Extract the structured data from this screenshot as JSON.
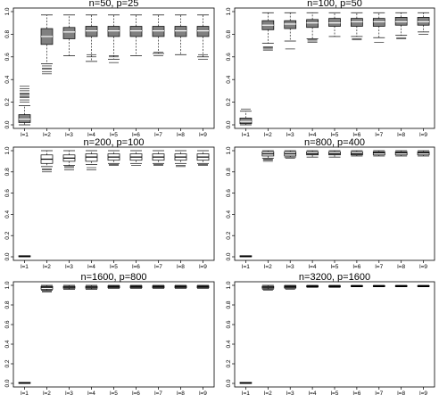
{
  "chart_data": [
    {
      "type": "boxplot",
      "title": "n=50, p=25",
      "categories": [
        "l=1",
        "l=2",
        "l=3",
        "l=4",
        "l=5",
        "l=6",
        "l=7",
        "l=8",
        "l=9"
      ],
      "ylim": [
        0,
        1.0
      ],
      "yticks": [
        "0.0",
        "0.2",
        "0.4",
        "0.6",
        "0.8",
        "1.0"
      ],
      "fill": "#808080",
      "boxes": [
        {
          "low": 0.0,
          "q1": 0.02,
          "median": 0.05,
          "q3": 0.09,
          "high": 0.17,
          "outliers": [
            0.2,
            0.22,
            0.24,
            0.25,
            0.26,
            0.27,
            0.28,
            0.3,
            0.32,
            0.34
          ]
        },
        {
          "low": 0.54,
          "q1": 0.71,
          "median": 0.78,
          "q3": 0.85,
          "high": 0.97,
          "outliers": [
            0.45,
            0.47,
            0.49,
            0.5,
            0.52
          ]
        },
        {
          "low": 0.61,
          "q1": 0.76,
          "median": 0.82,
          "q3": 0.86,
          "high": 0.97,
          "outliers": []
        },
        {
          "low": 0.56,
          "q1": 0.78,
          "median": 0.83,
          "q3": 0.87,
          "high": 0.97,
          "outliers": [
            0.6,
            0.62
          ]
        },
        {
          "low": 0.58,
          "q1": 0.78,
          "median": 0.83,
          "q3": 0.87,
          "high": 0.97,
          "outliers": [
            0.55,
            0.6,
            0.61
          ]
        },
        {
          "low": 0.61,
          "q1": 0.78,
          "median": 0.83,
          "q3": 0.87,
          "high": 0.97,
          "outliers": []
        },
        {
          "low": 0.63,
          "q1": 0.78,
          "median": 0.83,
          "q3": 0.87,
          "high": 0.97,
          "outliers": [
            0.61,
            0.64
          ]
        },
        {
          "low": 0.62,
          "q1": 0.78,
          "median": 0.83,
          "q3": 0.87,
          "high": 0.97,
          "outliers": []
        },
        {
          "low": 0.6,
          "q1": 0.78,
          "median": 0.83,
          "q3": 0.87,
          "high": 0.97,
          "outliers": [
            0.58,
            0.62
          ]
        }
      ]
    },
    {
      "type": "boxplot",
      "title": "n=100, p=50",
      "categories": [
        "l=1",
        "l=2",
        "l=3",
        "l=4",
        "l=5",
        "l=6",
        "l=7",
        "l=8",
        "l=9"
      ],
      "ylim": [
        0,
        1.0
      ],
      "yticks": [
        "0.0",
        "0.2",
        "0.4",
        "0.6",
        "0.8",
        "1.0"
      ],
      "fill": "#808080",
      "boxes": [
        {
          "low": 0.0,
          "q1": 0.01,
          "median": 0.03,
          "q3": 0.06,
          "high": 0.12,
          "outliers": [
            0.14
          ]
        },
        {
          "low": 0.72,
          "q1": 0.84,
          "median": 0.88,
          "q3": 0.92,
          "high": 0.99,
          "outliers": [
            0.66,
            0.67,
            0.68,
            0.69
          ]
        },
        {
          "low": 0.74,
          "q1": 0.85,
          "median": 0.89,
          "q3": 0.92,
          "high": 0.99,
          "outliers": [
            0.67
          ]
        },
        {
          "low": 0.76,
          "q1": 0.86,
          "median": 0.9,
          "q3": 0.93,
          "high": 0.99,
          "outliers": [
            0.73,
            0.74,
            0.75
          ]
        },
        {
          "low": 0.78,
          "q1": 0.87,
          "median": 0.9,
          "q3": 0.94,
          "high": 0.99,
          "outliers": []
        },
        {
          "low": 0.78,
          "q1": 0.87,
          "median": 0.91,
          "q3": 0.94,
          "high": 0.99,
          "outliers": [
            0.75,
            0.76
          ]
        },
        {
          "low": 0.77,
          "q1": 0.87,
          "median": 0.91,
          "q3": 0.94,
          "high": 0.99,
          "outliers": [
            0.73
          ]
        },
        {
          "low": 0.79,
          "q1": 0.88,
          "median": 0.91,
          "q3": 0.95,
          "high": 0.99,
          "outliers": [
            0.76,
            0.77
          ]
        },
        {
          "low": 0.82,
          "q1": 0.88,
          "median": 0.91,
          "q3": 0.95,
          "high": 0.99,
          "outliers": [
            0.8
          ]
        }
      ]
    },
    {
      "type": "boxplot",
      "title": "n=200, p=100",
      "categories": [
        "l=1",
        "l=2",
        "l=3",
        "l=4",
        "l=5",
        "l=6",
        "l=7",
        "l=8",
        "l=9"
      ],
      "ylim": [
        0,
        1.0
      ],
      "yticks": [
        "0.0",
        "0.2",
        "0.4",
        "0.6",
        "0.8",
        "1.0"
      ],
      "fill": "#ffffff",
      "boxes": [
        {
          "low": 0.0,
          "q1": 0.0,
          "median": 0.005,
          "q3": 0.01,
          "high": 0.01,
          "outliers": []
        },
        {
          "low": 0.85,
          "q1": 0.88,
          "median": 0.92,
          "q3": 0.96,
          "high": 1.0,
          "outliers": [
            0.8,
            0.82,
            0.83
          ]
        },
        {
          "low": 0.86,
          "q1": 0.9,
          "median": 0.93,
          "q3": 0.96,
          "high": 1.0,
          "outliers": [
            0.82,
            0.84,
            0.85
          ]
        },
        {
          "low": 0.87,
          "q1": 0.9,
          "median": 0.94,
          "q3": 0.97,
          "high": 1.0,
          "outliers": [
            0.82,
            0.84
          ]
        },
        {
          "low": 0.88,
          "q1": 0.91,
          "median": 0.94,
          "q3": 0.97,
          "high": 1.0,
          "outliers": [
            0.86,
            0.87
          ]
        },
        {
          "low": 0.88,
          "q1": 0.91,
          "median": 0.94,
          "q3": 0.97,
          "high": 1.0,
          "outliers": [
            0.86
          ]
        },
        {
          "low": 0.88,
          "q1": 0.91,
          "median": 0.94,
          "q3": 0.97,
          "high": 1.0,
          "outliers": [
            0.86,
            0.87
          ]
        },
        {
          "low": 0.88,
          "q1": 0.91,
          "median": 0.94,
          "q3": 0.97,
          "high": 1.0,
          "outliers": [
            0.85,
            0.86
          ]
        },
        {
          "low": 0.88,
          "q1": 0.91,
          "median": 0.94,
          "q3": 0.97,
          "high": 1.0,
          "outliers": [
            0.86,
            0.87
          ]
        }
      ]
    },
    {
      "type": "boxplot",
      "title": "n=800, p=400",
      "categories": [
        "l=1",
        "l=2",
        "l=3",
        "l=4",
        "l=5",
        "l=6",
        "l=7",
        "l=8",
        "l=9"
      ],
      "ylim": [
        0,
        1.0
      ],
      "yticks": [
        "0.0",
        "0.2",
        "0.4",
        "0.6",
        "0.8",
        "1.0"
      ],
      "fill": "#ffffff",
      "boxes": [
        {
          "low": 0.0,
          "q1": 0.0,
          "median": 0.005,
          "q3": 0.01,
          "high": 0.01,
          "outliers": []
        },
        {
          "low": 0.93,
          "q1": 0.95,
          "median": 0.97,
          "q3": 0.99,
          "high": 1.0,
          "outliers": [
            0.9,
            0.91,
            0.92
          ]
        },
        {
          "low": 0.94,
          "q1": 0.95,
          "median": 0.97,
          "q3": 0.99,
          "high": 1.0,
          "outliers": [
            0.93
          ]
        },
        {
          "low": 0.94,
          "q1": 0.96,
          "median": 0.97,
          "q3": 0.99,
          "high": 1.0,
          "outliers": []
        },
        {
          "low": 0.94,
          "q1": 0.96,
          "median": 0.97,
          "q3": 0.99,
          "high": 1.0,
          "outliers": []
        },
        {
          "low": 0.95,
          "q1": 0.96,
          "median": 0.97,
          "q3": 0.99,
          "high": 1.0,
          "outliers": []
        },
        {
          "low": 0.95,
          "q1": 0.96,
          "median": 0.98,
          "q3": 0.99,
          "high": 1.0,
          "outliers": []
        },
        {
          "low": 0.95,
          "q1": 0.96,
          "median": 0.98,
          "q3": 0.99,
          "high": 1.0,
          "outliers": []
        },
        {
          "low": 0.95,
          "q1": 0.96,
          "median": 0.98,
          "q3": 0.99,
          "high": 1.0,
          "outliers": []
        }
      ]
    },
    {
      "type": "boxplot",
      "title": "n=1600, p=800",
      "categories": [
        "l=1",
        "l=2",
        "l=3",
        "l=4",
        "l=5",
        "l=6",
        "l=7",
        "l=8",
        "l=9"
      ],
      "ylim": [
        0,
        1.0
      ],
      "yticks": [
        "0.0",
        "0.2",
        "0.4",
        "0.6",
        "0.8",
        "1.0"
      ],
      "fill": "#ffffff",
      "boxes": [
        {
          "low": 0.0,
          "q1": 0.0,
          "median": 0.005,
          "q3": 0.01,
          "high": 0.01,
          "outliers": []
        },
        {
          "low": 0.95,
          "q1": 0.96,
          "median": 0.98,
          "q3": 0.99,
          "high": 1.0,
          "outliers": [
            0.93,
            0.94
          ]
        },
        {
          "low": 0.96,
          "q1": 0.97,
          "median": 0.98,
          "q3": 0.99,
          "high": 1.0,
          "outliers": []
        },
        {
          "low": 0.96,
          "q1": 0.97,
          "median": 0.98,
          "q3": 0.99,
          "high": 1.0,
          "outliers": []
        },
        {
          "low": 0.97,
          "q1": 0.975,
          "median": 0.985,
          "q3": 0.995,
          "high": 1.0,
          "outliers": []
        },
        {
          "low": 0.97,
          "q1": 0.975,
          "median": 0.985,
          "q3": 0.995,
          "high": 1.0,
          "outliers": []
        },
        {
          "low": 0.97,
          "q1": 0.975,
          "median": 0.985,
          "q3": 0.995,
          "high": 1.0,
          "outliers": []
        },
        {
          "low": 0.97,
          "q1": 0.975,
          "median": 0.985,
          "q3": 0.995,
          "high": 1.0,
          "outliers": []
        },
        {
          "low": 0.97,
          "q1": 0.975,
          "median": 0.985,
          "q3": 0.995,
          "high": 1.0,
          "outliers": []
        }
      ]
    },
    {
      "type": "boxplot",
      "title": "n=3200, p=1600",
      "categories": [
        "l=1",
        "l=2",
        "l=3",
        "l=4",
        "l=5",
        "l=6",
        "l=7",
        "l=8",
        "l=9"
      ],
      "ylim": [
        0,
        1.0
      ],
      "yticks": [
        "0.0",
        "0.2",
        "0.4",
        "0.6",
        "0.8",
        "1.0"
      ],
      "fill": "#ffffff",
      "boxes": [
        {
          "low": 0.0,
          "q1": 0.0,
          "median": 0.005,
          "q3": 0.01,
          "high": 0.01,
          "outliers": []
        },
        {
          "low": 0.96,
          "q1": 0.97,
          "median": 0.98,
          "q3": 0.99,
          "high": 1.0,
          "outliers": [
            0.95
          ]
        },
        {
          "low": 0.97,
          "q1": 0.975,
          "median": 0.985,
          "q3": 0.995,
          "high": 1.0,
          "outliers": [
            0.96
          ]
        },
        {
          "low": 0.98,
          "q1": 0.985,
          "median": 0.99,
          "q3": 0.995,
          "high": 1.0,
          "outliers": []
        },
        {
          "low": 0.98,
          "q1": 0.985,
          "median": 0.99,
          "q3": 0.995,
          "high": 1.0,
          "outliers": []
        },
        {
          "low": 0.985,
          "q1": 0.99,
          "median": 0.993,
          "q3": 0.997,
          "high": 1.0,
          "outliers": []
        },
        {
          "low": 0.985,
          "q1": 0.99,
          "median": 0.993,
          "q3": 0.997,
          "high": 1.0,
          "outliers": []
        },
        {
          "low": 0.985,
          "q1": 0.99,
          "median": 0.993,
          "q3": 0.997,
          "high": 1.0,
          "outliers": []
        },
        {
          "low": 0.985,
          "q1": 0.99,
          "median": 0.993,
          "q3": 0.997,
          "high": 1.0,
          "outliers": []
        }
      ]
    }
  ]
}
